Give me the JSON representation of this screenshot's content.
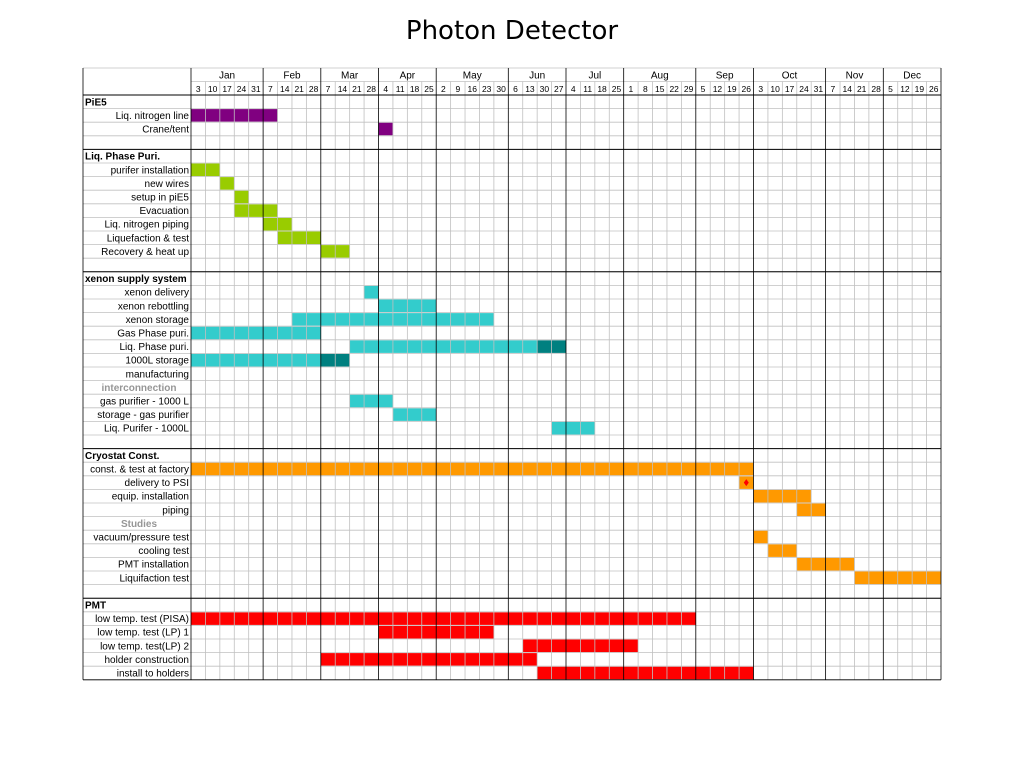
{
  "title": "Photon Detector",
  "chart_data": {
    "type": "gantt",
    "title": "Photon Detector",
    "months": [
      {
        "name": "Jan",
        "weeks": [
          "3",
          "10",
          "17",
          "24",
          "31"
        ]
      },
      {
        "name": "Feb",
        "weeks": [
          "7",
          "14",
          "21",
          "28"
        ]
      },
      {
        "name": "Mar",
        "weeks": [
          "7",
          "14",
          "21",
          "28"
        ]
      },
      {
        "name": "Apr",
        "weeks": [
          "4",
          "11",
          "18",
          "25"
        ]
      },
      {
        "name": "May",
        "weeks": [
          "2",
          "9",
          "16",
          "23",
          "30"
        ]
      },
      {
        "name": "Jun",
        "weeks": [
          "6",
          "13",
          "30",
          "27"
        ]
      },
      {
        "name": "Jul",
        "weeks": [
          "4",
          "11",
          "18",
          "25"
        ]
      },
      {
        "name": "Aug",
        "weeks": [
          "1",
          "8",
          "15",
          "22",
          "29"
        ]
      },
      {
        "name": "Sep",
        "weeks": [
          "5",
          "12",
          "19",
          "26"
        ]
      },
      {
        "name": "Oct",
        "weeks": [
          "3",
          "10",
          "17",
          "24",
          "31"
        ]
      },
      {
        "name": "Nov",
        "weeks": [
          "7",
          "14",
          "21",
          "28"
        ]
      },
      {
        "name": "Dec",
        "weeks": [
          "5",
          "12",
          "19",
          "26"
        ]
      }
    ],
    "colors": {
      "purple": "#800080",
      "green": "#99cc00",
      "cyan": "#33cccc",
      "teal": "#008080",
      "orange": "#ff9900",
      "red": "#ff0000",
      "grid": "#c0c0c0",
      "section_line": "#000000",
      "gray_label": "#969696"
    },
    "rows": [
      {
        "label": "PiE5",
        "kind": "header"
      },
      {
        "label": "Liq. nitrogen line",
        "bars": [
          {
            "start_week": 0,
            "end_week": 6,
            "color": "purple"
          }
        ]
      },
      {
        "label": "Crane/tent",
        "bars": [
          {
            "start_week": 13,
            "end_week": 14,
            "color": "purple"
          }
        ]
      },
      {
        "label": "",
        "kind": "blank"
      },
      {
        "label": "Liq. Phase Puri.",
        "kind": "header"
      },
      {
        "label": "purifer installation",
        "bars": [
          {
            "start_week": 0,
            "end_week": 2,
            "color": "green"
          }
        ]
      },
      {
        "label": "new wires",
        "bars": [
          {
            "start_week": 2,
            "end_week": 3,
            "color": "green"
          }
        ]
      },
      {
        "label": "setup in piE5",
        "bars": [
          {
            "start_week": 3,
            "end_week": 4,
            "color": "green"
          }
        ]
      },
      {
        "label": "Evacuation",
        "bars": [
          {
            "start_week": 3,
            "end_week": 6,
            "color": "green"
          }
        ]
      },
      {
        "label": "Liq. nitrogen piping",
        "bars": [
          {
            "start_week": 5,
            "end_week": 7,
            "color": "green"
          }
        ]
      },
      {
        "label": "Liquefaction & test",
        "bars": [
          {
            "start_week": 6,
            "end_week": 9,
            "color": "green"
          }
        ]
      },
      {
        "label": "Recovery & heat up",
        "bars": [
          {
            "start_week": 9,
            "end_week": 11,
            "color": "green"
          }
        ]
      },
      {
        "label": "",
        "kind": "blank"
      },
      {
        "label": "xenon supply system",
        "kind": "header"
      },
      {
        "label": "xenon delivery",
        "bars": [
          {
            "start_week": 12,
            "end_week": 13,
            "color": "cyan"
          }
        ]
      },
      {
        "label": "xenon rebottling",
        "bars": [
          {
            "start_week": 13,
            "end_week": 17,
            "color": "cyan"
          }
        ]
      },
      {
        "label": "xenon storage",
        "bars": [
          {
            "start_week": 7,
            "end_week": 21,
            "color": "cyan"
          }
        ]
      },
      {
        "label": "Gas Phase puri.",
        "bars": [
          {
            "start_week": 0,
            "end_week": 9,
            "color": "cyan"
          }
        ]
      },
      {
        "label": "Liq. Phase puri.",
        "bars": [
          {
            "start_week": 11,
            "end_week": 24,
            "color": "cyan"
          },
          {
            "start_week": 24,
            "end_week": 26,
            "color": "teal"
          }
        ]
      },
      {
        "label": "1000L storage",
        "bars": [
          {
            "start_week": 0,
            "end_week": 9,
            "color": "cyan"
          },
          {
            "start_week": 9,
            "end_week": 11,
            "color": "teal"
          }
        ]
      },
      {
        "label": "manufacturing",
        "bars": []
      },
      {
        "label": "interconnection",
        "kind": "subheader"
      },
      {
        "label": "gas purifier - 1000 L",
        "bars": [
          {
            "start_week": 11,
            "end_week": 14,
            "color": "cyan"
          }
        ]
      },
      {
        "label": "storage - gas purifier",
        "bars": [
          {
            "start_week": 14,
            "end_week": 17,
            "color": "cyan"
          }
        ]
      },
      {
        "label": "Liq. Purifer - 1000L",
        "bars": [
          {
            "start_week": 25,
            "end_week": 28,
            "color": "cyan"
          }
        ]
      },
      {
        "label": "",
        "kind": "blank"
      },
      {
        "label": "Cryostat Const.",
        "kind": "header"
      },
      {
        "label": "const. & test at factory",
        "bars": [
          {
            "start_week": 0,
            "end_week": 39,
            "color": "orange"
          }
        ]
      },
      {
        "label": "delivery to PSI",
        "bars": [
          {
            "start_week": 38,
            "end_week": 39,
            "color": "orange"
          }
        ],
        "marker_week": 38
      },
      {
        "label": "equip. installation",
        "bars": [
          {
            "start_week": 39,
            "end_week": 43,
            "color": "orange"
          }
        ]
      },
      {
        "label": "piping",
        "bars": [
          {
            "start_week": 42,
            "end_week": 44,
            "color": "orange"
          }
        ]
      },
      {
        "label": "Studies",
        "kind": "subheader"
      },
      {
        "label": "vacuum/pressure test",
        "bars": [
          {
            "start_week": 39,
            "end_week": 40,
            "color": "orange"
          }
        ]
      },
      {
        "label": "cooling test",
        "bars": [
          {
            "start_week": 40,
            "end_week": 42,
            "color": "orange"
          }
        ]
      },
      {
        "label": "PMT installation",
        "bars": [
          {
            "start_week": 42,
            "end_week": 46,
            "color": "orange"
          }
        ]
      },
      {
        "label": "Liquifaction test",
        "bars": [
          {
            "start_week": 46,
            "end_week": 52,
            "color": "orange"
          }
        ]
      },
      {
        "label": "",
        "kind": "blank"
      },
      {
        "label": "PMT",
        "kind": "header"
      },
      {
        "label": "low temp. test (PISA)",
        "bars": [
          {
            "start_week": 0,
            "end_week": 35,
            "color": "red"
          }
        ]
      },
      {
        "label": "low temp. test (LP) 1",
        "bars": [
          {
            "start_week": 13,
            "end_week": 21,
            "color": "red"
          }
        ]
      },
      {
        "label": "low temp. test(LP) 2",
        "bars": [
          {
            "start_week": 23,
            "end_week": 31,
            "color": "red"
          }
        ]
      },
      {
        "label": "holder construction",
        "bars": [
          {
            "start_week": 9,
            "end_week": 24,
            "color": "red"
          }
        ]
      },
      {
        "label": "install to holders",
        "bars": [
          {
            "start_week": 24,
            "end_week": 39,
            "color": "red"
          }
        ]
      }
    ]
  }
}
